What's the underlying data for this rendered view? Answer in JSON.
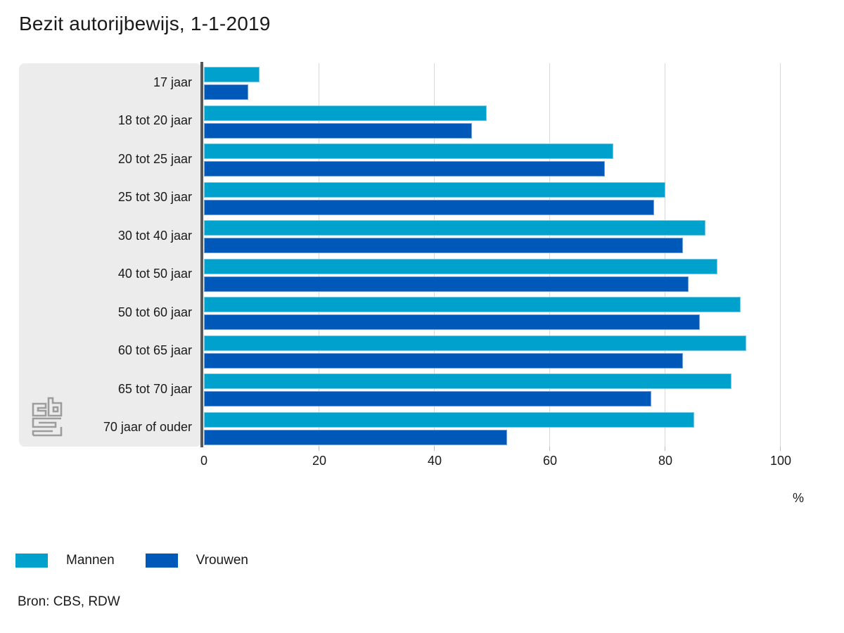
{
  "title": "Bezit autorijbewijs, 1-1-2019",
  "chart_data": {
    "type": "bar",
    "orientation": "horizontal",
    "title": "Bezit autorijbewijs, 1-1-2019",
    "categories": [
      "17 jaar",
      "18 tot 20 jaar",
      "20 tot 25 jaar",
      "25 tot 30 jaar",
      "30 tot 40 jaar",
      "40 tot 50 jaar",
      "50 tot 60 jaar",
      "60 tot 65 jaar",
      "65 tot 70 jaar",
      "70 jaar of ouder"
    ],
    "series": [
      {
        "name": "Mannen",
        "color": "#00a1cd",
        "values": [
          9.6,
          49,
          71,
          80,
          87,
          89,
          93,
          94,
          91.5,
          85
        ]
      },
      {
        "name": "Vrouwen",
        "color": "#0058b8",
        "values": [
          7.7,
          46.5,
          69.5,
          78,
          83,
          84,
          86,
          83,
          77.5,
          52.5
        ]
      }
    ],
    "xlabel": "%",
    "xlim": [
      0,
      100
    ],
    "xticks": [
      0,
      20,
      40,
      60,
      80,
      100
    ],
    "grid": "vertical-only",
    "legend_position": "bottom-left"
  },
  "legend": {
    "mannen_label": "Mannen",
    "vrouwen_label": "Vrouwen"
  },
  "source": "Bron: CBS, RDW",
  "logo": "cbs-logo",
  "colors": {
    "mannen": "#00a1cd",
    "vrouwen": "#0058b8",
    "label_panel": "#ececec",
    "axis_line": "#58585a",
    "gridline": "#d9d9d9",
    "text": "#1a1a1a",
    "logo": "#9d9d9d"
  }
}
